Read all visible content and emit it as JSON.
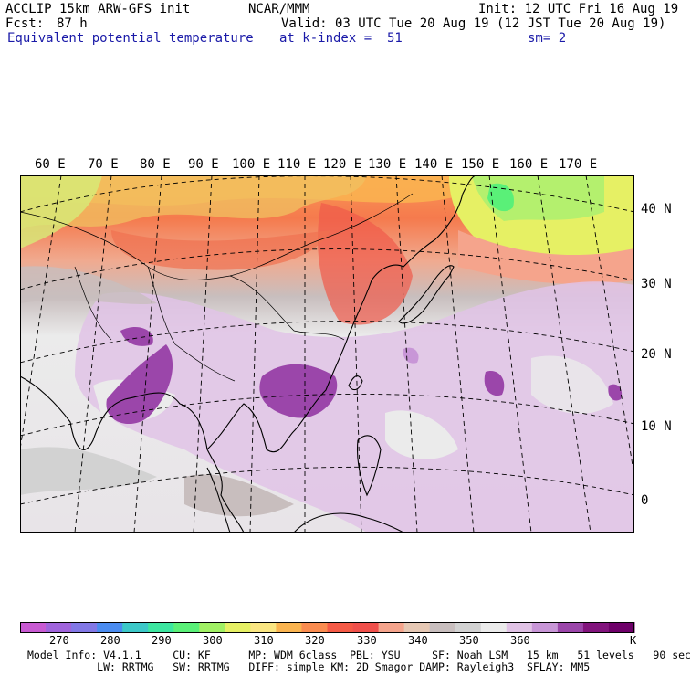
{
  "header": {
    "model": "ACCLIP 15km ARW-GFS init",
    "org": "NCAR/MMM",
    "init": "Init: 12 UTC Fri 16 Aug 19",
    "fcst_label": "Fcst:",
    "fcst_value": "87 h",
    "valid": "Valid: 03 UTC Tue 20 Aug 19 (12 JST Tue 20 Aug 19)",
    "field": "Equivalent potential temperature",
    "level": "at k-index =  51",
    "smooth": "sm= 2"
  },
  "map": {
    "longitude_labels": [
      "60 E",
      "70 E",
      "80 E",
      "90 E",
      "100 E",
      "110 E",
      "120 E",
      "130 E",
      "140 E",
      "150 E",
      "160 E",
      "170 E"
    ],
    "latitude_labels": [
      "40 N",
      "30 N",
      "20 N",
      "10 N",
      "0"
    ]
  },
  "colorbar": {
    "unit": "K",
    "tick_labels": [
      "270",
      "280",
      "290",
      "300",
      "310",
      "320",
      "330",
      "340",
      "350",
      "360"
    ],
    "colors": [
      "#c85ad2",
      "#a064dc",
      "#8278e6",
      "#4b8cf0",
      "#3cc8c8",
      "#3ce6a0",
      "#5af078",
      "#a0f064",
      "#e6f064",
      "#fae682",
      "#fab450",
      "#fa8c50",
      "#f55a46",
      "#f0504b",
      "#f5a48c",
      "#e6c8b4",
      "#c8bebe",
      "#d2d2d2",
      "#ebebeb",
      "#e1c3e6",
      "#c896d7",
      "#9b46aa",
      "#82147d",
      "#6e0069"
    ]
  },
  "footer": {
    "line1": "Model Info: V4.1.1     CU: KF      MP: WDM 6class  PBL: YSU     SF: Noah LSM   15 km   51 levels   90 sec",
    "line2": "           LW: RRTMG   SW: RRTMG   DIFF: simple KM: 2D Smagor DAMP: Rayleigh3  SFLAY: MM5"
  }
}
